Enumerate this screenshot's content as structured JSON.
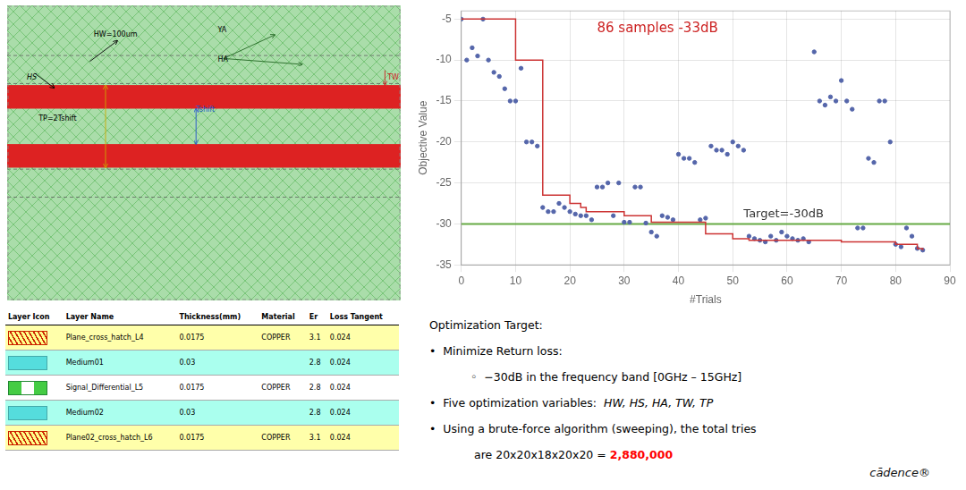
{
  "chart_data": {
    "type": "scatter",
    "xlabel": "#Trials",
    "ylabel": "Objective Value",
    "xlim": [
      0,
      90
    ],
    "ylim": [
      -35,
      -4
    ],
    "xticks": [
      0,
      10,
      20,
      30,
      40,
      50,
      60,
      70,
      80,
      90
    ],
    "yticks": [
      -5,
      -10,
      -15,
      -20,
      -25,
      -30,
      -35
    ],
    "grid": true,
    "series": [
      {
        "type": "scatter",
        "color": "#5566aa",
        "marker": "circle",
        "x": [
          0,
          1,
          2,
          3,
          4,
          5,
          6,
          7,
          8,
          9,
          10,
          11,
          12,
          13,
          14,
          15,
          16,
          17,
          18,
          19,
          20,
          21,
          22,
          23,
          24,
          25,
          26,
          27,
          28,
          29,
          30,
          31,
          32,
          33,
          34,
          35,
          36,
          37,
          38,
          39,
          40,
          41,
          42,
          43,
          44,
          45,
          46,
          47,
          48,
          49,
          50,
          51,
          52,
          53,
          54,
          55,
          56,
          57,
          58,
          59,
          60,
          61,
          62,
          63,
          64,
          65,
          66,
          67,
          68,
          69,
          70,
          71,
          72,
          73,
          74,
          75,
          76,
          77,
          78,
          79,
          80,
          81,
          82,
          83,
          84,
          85
        ],
        "values": [
          -5.0,
          -10.0,
          -8.5,
          -9.5,
          -5.0,
          -10.0,
          -11.5,
          -12.0,
          -13.5,
          -15.0,
          -15.0,
          -11.0,
          -20.0,
          -20.0,
          -20.5,
          -28.0,
          -28.5,
          -28.5,
          -27.5,
          -28.0,
          -28.5,
          -28.8,
          -29.0,
          -29.0,
          -29.5,
          -25.5,
          -25.5,
          -25.0,
          -29.0,
          -25.0,
          -29.8,
          -29.8,
          -25.5,
          -25.5,
          -29.9,
          -31.0,
          -31.5,
          -29.0,
          -29.2,
          -29.5,
          -21.5,
          -22.0,
          -22.0,
          -22.5,
          -29.5,
          -29.3,
          -20.5,
          -21.0,
          -21.0,
          -21.5,
          -20.0,
          -20.5,
          -21.0,
          -31.5,
          -31.8,
          -32.0,
          -32.2,
          -31.5,
          -32.0,
          -31.0,
          -31.5,
          -31.8,
          -32.0,
          -31.8,
          -32.2,
          -9.0,
          -15.0,
          -15.5,
          -14.5,
          -15.0,
          -12.5,
          -15.0,
          -16.0,
          -30.5,
          -30.5,
          -22.0,
          -22.5,
          -15.0,
          -15.0,
          -20.0,
          -32.5,
          -32.8,
          -30.5,
          -31.5,
          -33.0,
          -33.2
        ]
      },
      {
        "type": "line",
        "color": "#cc3333",
        "line_style": "step",
        "x": [
          0,
          1,
          2,
          3,
          4,
          5,
          6,
          7,
          8,
          9,
          10,
          11,
          12,
          13,
          14,
          15,
          16,
          17,
          18,
          19,
          20,
          21,
          22,
          23,
          24,
          25,
          26,
          27,
          28,
          29,
          30,
          31,
          32,
          33,
          34,
          35,
          36,
          37,
          38,
          39,
          40,
          45,
          50,
          53,
          54,
          55,
          56,
          57,
          60,
          65,
          70,
          75,
          80,
          84,
          85
        ],
        "values": [
          -5.0,
          -5.0,
          -5.0,
          -5.0,
          -5.0,
          -5.0,
          -5.0,
          -5.0,
          -5.0,
          -5.0,
          -10.0,
          -10.0,
          -10.0,
          -10.0,
          -10.0,
          -26.5,
          -26.5,
          -26.5,
          -26.5,
          -26.5,
          -27.5,
          -27.5,
          -28.0,
          -28.5,
          -28.5,
          -28.5,
          -28.5,
          -28.5,
          -28.5,
          -28.5,
          -29.0,
          -29.0,
          -29.0,
          -29.0,
          -29.0,
          -29.8,
          -29.8,
          -29.8,
          -29.8,
          -29.8,
          -29.8,
          -31.2,
          -31.8,
          -32.0,
          -32.0,
          -32.0,
          -32.0,
          -32.0,
          -32.0,
          -32.0,
          -32.2,
          -32.2,
          -32.5,
          -33.0,
          -33.2
        ]
      },
      {
        "type": "hline",
        "color": "#66aa44",
        "values": [
          -30
        ]
      }
    ],
    "annotations": [
      {
        "text": "Target=-30dB",
        "x": 52,
        "y": -30
      },
      {
        "text": "86 samples -33dB",
        "x": 25,
        "y": -7,
        "color": "#cc2222"
      }
    ],
    "diagram_labels": [
      "HW=100um",
      "HS",
      "YA",
      "HA",
      "TW",
      "TP=2Tshift",
      "Tshift"
    ],
    "table": {
      "headers": [
        "Layer Icon",
        "Layer Name",
        "Thickness(mm)",
        "Material",
        "Er",
        "Loss Tangent"
      ],
      "rows": [
        [
          "Plane_cross_hatch_L4",
          "0.0175",
          "COPPER",
          "3.1",
          "0.024"
        ],
        [
          "Medium01",
          "0.03",
          null,
          "2.8",
          "0.024"
        ],
        [
          "Signal_Differential_L5",
          "0.0175",
          "COPPER",
          "2.8",
          "0.024"
        ],
        [
          "Medium02",
          "0.03",
          null,
          "2.8",
          "0.024"
        ],
        [
          "Plane02_cross_hatch_L6",
          "0.0175",
          "COPPER",
          "3.1",
          "0.024"
        ]
      ],
      "row_colors": [
        "#ffffaa",
        "#aaffee",
        "#ffffff",
        "#aaffee",
        "#ffffaa"
      ]
    },
    "text_panel": [
      [
        {
          "text": "Optimization Target:"
        }
      ],
      [
        {
          "text": "•  Minimize Return loss:"
        }
      ],
      [
        {
          "text": "◦  −30dB in the frequency band [0GHz – 15GHz]"
        }
      ],
      [
        {
          "text": "•  Five optimization variables:  "
        },
        {
          "text": "HW, HS, HA, TW, TP",
          "style": "italic"
        }
      ],
      [
        {
          "text": "•  Using a brute-force algorithm (sweeping), the total tries"
        }
      ],
      [
        {
          "text": "are 20x20x18x20x20 = "
        },
        {
          "text": "2,880,000",
          "style": "bold",
          "color": "red"
        }
      ]
    ],
    "logo": "cādence®"
  }
}
